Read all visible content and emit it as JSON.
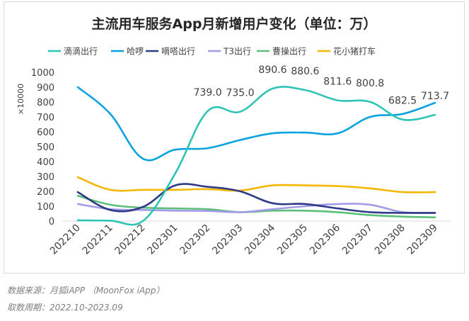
{
  "source_note": "数据来源：月狐iAPP （MoonFox iApp）",
  "period_note": "取数周期：2022.10-2023.09",
  "chart_data": {
    "type": "line",
    "title": "主流用车服务App月新增用户变化（单位：万）",
    "ylabel": "×10000",
    "xlabel": "",
    "ylim": [
      0,
      1000
    ],
    "yticks": [
      0,
      100,
      200,
      300,
      400,
      500,
      600,
      700,
      800,
      900,
      1000
    ],
    "grid": false,
    "legend_position": "top",
    "categories": [
      "202210",
      "202211",
      "202212",
      "202301",
      "202302",
      "202303",
      "202304",
      "202305",
      "202306",
      "202307",
      "202308",
      "202309"
    ],
    "series": [
      {
        "name": "滴滴出行",
        "color": "#2ec4b6",
        "values": [
          5,
          3,
          0,
          320,
          739.0,
          735.0,
          890.6,
          880.6,
          811.6,
          800.8,
          682.5,
          713.7
        ],
        "labels": [
          null,
          null,
          null,
          null,
          "739.0",
          "735.0",
          "890.6",
          "880.6",
          "811.6",
          "800.8",
          "682.5",
          "713.7"
        ]
      },
      {
        "name": "哈啰",
        "color": "#0aa3e0",
        "values": [
          900,
          720,
          420,
          480,
          490,
          545,
          590,
          595,
          590,
          700,
          720,
          795
        ]
      },
      {
        "name": "嘀嗒出行",
        "color": "#2e3a87",
        "values": [
          195,
          75,
          95,
          240,
          230,
          200,
          120,
          115,
          85,
          60,
          55,
          55
        ]
      },
      {
        "name": "T3出行",
        "color": "#a29be8",
        "values": [
          115,
          80,
          75,
          70,
          68,
          60,
          80,
          100,
          115,
          110,
          60,
          55
        ]
      },
      {
        "name": "曹操出行",
        "color": "#5bbf7a",
        "values": [
          170,
          110,
          90,
          85,
          80,
          60,
          70,
          70,
          60,
          40,
          30,
          25
        ]
      },
      {
        "name": "花小猪打车",
        "color": "#f5b800",
        "values": [
          295,
          210,
          210,
          210,
          215,
          205,
          240,
          240,
          235,
          220,
          195,
          195
        ]
      }
    ]
  }
}
